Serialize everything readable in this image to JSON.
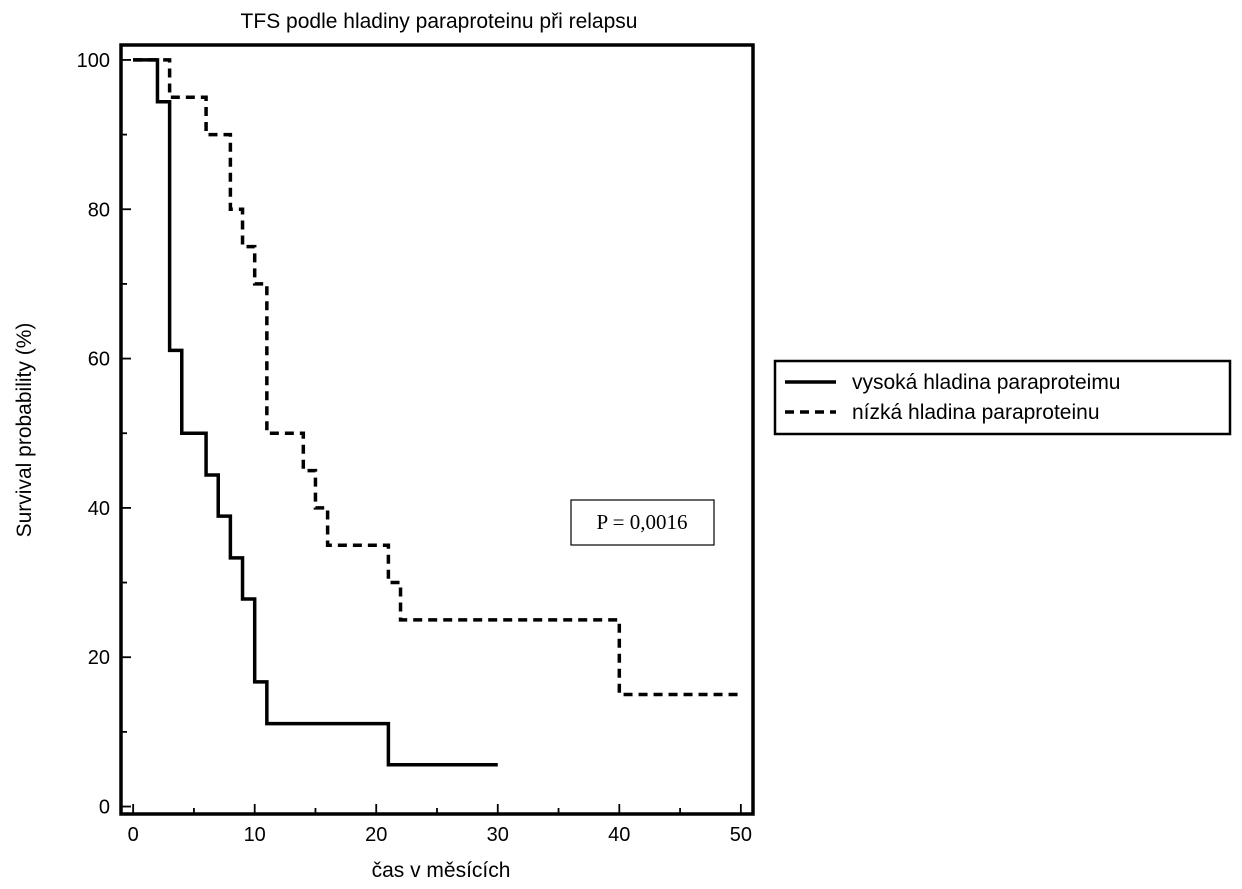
{
  "chart_data": {
    "type": "line",
    "title": "TFS podle hladiny paraproteinu při relapsu",
    "xlabel": "čas v měsících",
    "ylabel": "Survival probability (%)",
    "xlim": [
      -1,
      51
    ],
    "ylim": [
      -1,
      102
    ],
    "xticks": [
      0,
      10,
      20,
      30,
      40,
      50
    ],
    "yticks": [
      0,
      20,
      40,
      60,
      80,
      100
    ],
    "grid": false,
    "step": true,
    "legend_position": "right",
    "annotation": "P = 0,0016",
    "series": [
      {
        "name": "vysoká hladina paraproteimu",
        "style": "solid",
        "color": "#000000",
        "x": [
          0,
          2,
          3,
          4,
          6,
          7,
          8,
          9,
          10,
          11,
          21,
          30
        ],
        "y": [
          100,
          94.4,
          61.1,
          50,
          44.4,
          38.9,
          33.3,
          27.8,
          16.7,
          11.1,
          5.6,
          5.6
        ]
      },
      {
        "name": "nízká hladina paraproteinu",
        "style": "dashed",
        "color": "#000000",
        "x": [
          0,
          3,
          6,
          8,
          9,
          10,
          11,
          14,
          15,
          16,
          21,
          22,
          40,
          50
        ],
        "y": [
          100,
          95,
          90,
          80,
          75,
          70,
          50,
          45,
          40,
          35,
          30,
          25,
          15,
          15
        ]
      }
    ]
  }
}
